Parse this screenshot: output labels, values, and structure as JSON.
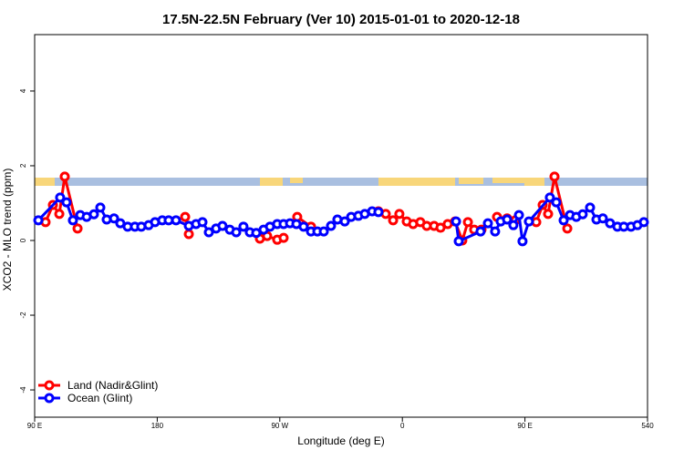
{
  "chart_data": {
    "type": "line",
    "title": "17.5N-22.5N February (Ver 10)   2015-01-01 to 2020-12-18",
    "x_label": "Longitude (deg E)",
    "y_label": "XCO2 - MLO trend (ppm)",
    "xlim": [
      90,
      540
    ],
    "xticks": [
      {
        "value": 90,
        "label": "90 E"
      },
      180,
      {
        "value": 270,
        "label": "90 W"
      },
      {
        "value": 360,
        "label": "0"
      },
      {
        "value": 450,
        "label": "90 E"
      },
      540
    ],
    "ylim": [
      -4.73,
      5.51
    ],
    "yticks": [
      -4,
      -2,
      0,
      2,
      4
    ],
    "legend": "bottom-left",
    "series": [
      {
        "name": "Land (Nadir&Glint)",
        "color": "#ff0000",
        "x": [
          98,
          103.4,
          108.1,
          112.1,
          121.5,
          null,
          200.5,
          203.2,
          null,
          255.4,
          260.7,
          268.1,
          272.8,
          null,
          282.8,
          292.9,
          null,
          342.4,
          347.8,
          353.2,
          357.8,
          363.2,
          367.9,
          373.2,
          377.9,
          383.3,
          388,
          393.3,
          398.7,
          404,
          408.1,
          412.7,
          418.1,
          null,
          429.5,
          436.9,
          442.9,
          null,
          458.3,
          463,
          467,
          471.7,
          481.1
        ],
        "values": [
          0.49,
          0.95,
          0.71,
          1.71,
          0.32,
          null,
          0.63,
          0.17,
          null,
          0.05,
          0.12,
          0.02,
          0.07,
          null,
          0.63,
          0.37,
          null,
          0.78,
          0.71,
          0.54,
          0.71,
          0.51,
          0.44,
          0.49,
          0.39,
          0.39,
          0.34,
          0.44,
          0.51,
          0.0,
          0.49,
          0.29,
          0.29,
          null,
          0.63,
          0.59,
          0.54,
          null,
          0.49,
          0.95,
          0.71,
          1.71,
          0.32
        ]
      },
      {
        "name": "Ocean (Glint)",
        "color": "#0000ff",
        "x": [
          92.7,
          108.7,
          113.4,
          118.1,
          123.5,
          128.2,
          133.5,
          138.2,
          142.9,
          148.3,
          152.9,
          158.3,
          163.6,
          168.3,
          173.7,
          178.4,
          183.7,
          188.4,
          193.8,
          203.2,
          208.5,
          213.2,
          217.9,
          223.2,
          227.9,
          233.3,
          238,
          243.3,
          248,
          252.7,
          258.1,
          262.8,
          268.1,
          272.8,
          277.5,
          282.2,
          287.5,
          292.9,
          297.6,
          302.3,
          307.6,
          312.3,
          317.7,
          322.4,
          327.7,
          332.4,
          337.8,
          342.4,
          null,
          399.4,
          401.4,
          417.4,
          422.8,
          428.1,
          432.2,
          436.9,
          441.5,
          445.6,
          448.2,
          452.9,
          468.3,
          473,
          478.4,
          483.1,
          487.7,
          492.4,
          497.8,
          502.5,
          507.2,
          512.5,
          517.9,
          522.6,
          527.9,
          532.6,
          537.3
        ],
        "values": [
          0.54,
          1.15,
          1.02,
          0.54,
          0.68,
          0.63,
          0.7,
          0.88,
          0.56,
          0.59,
          0.46,
          0.37,
          0.37,
          0.37,
          0.41,
          0.49,
          0.54,
          0.54,
          0.54,
          0.39,
          0.44,
          0.49,
          0.22,
          0.32,
          0.39,
          0.29,
          0.22,
          0.37,
          0.22,
          0.2,
          0.29,
          0.37,
          0.44,
          0.44,
          0.46,
          0.44,
          0.37,
          0.24,
          0.24,
          0.24,
          0.39,
          0.56,
          0.51,
          0.63,
          0.66,
          0.71,
          0.78,
          0.76,
          null,
          0.51,
          -0.02,
          0.24,
          0.46,
          0.24,
          0.51,
          0.56,
          0.41,
          0.68,
          -0.02,
          0.51,
          1.15,
          1.02,
          0.54,
          0.68,
          0.63,
          0.7,
          0.88,
          0.56,
          0.59,
          0.46,
          0.37,
          0.37,
          0.37,
          0.41,
          0.49
        ]
      }
    ]
  }
}
